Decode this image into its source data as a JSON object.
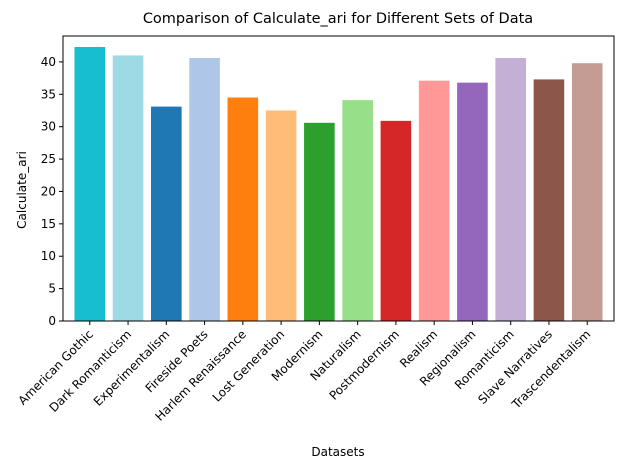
{
  "chart_data": {
    "type": "bar",
    "title": "Comparison of Calculate_ari for Different Sets of Data",
    "xlabel": "Datasets",
    "ylabel": "Calculate_ari",
    "ylim": [
      0,
      44
    ],
    "yticks": [
      0,
      5,
      10,
      15,
      20,
      25,
      30,
      35,
      40
    ],
    "grid": false,
    "categories": [
      "American Gothic",
      "Dark Romanticism",
      "Experimentalism",
      "Fireside Poets",
      "Harlem Renaissance",
      "Lost Generation",
      "Modernism",
      "Naturalism",
      "Postmodernism",
      "Realism",
      "Regionalism",
      "Romanticism",
      "Slave Narratives",
      "Trascendentalism"
    ],
    "values": [
      42.3,
      41.0,
      33.1,
      40.6,
      34.5,
      32.5,
      30.6,
      34.1,
      30.9,
      37.1,
      36.8,
      40.6,
      37.3,
      39.8
    ],
    "colors": [
      "#17becf",
      "#9edae5",
      "#1f77b4",
      "#aec7e8",
      "#ff7f0e",
      "#ffbb78",
      "#2ca02c",
      "#98df8a",
      "#d62728",
      "#ff9896",
      "#9467bd",
      "#c5b0d5",
      "#8c564b",
      "#c49c94"
    ]
  }
}
